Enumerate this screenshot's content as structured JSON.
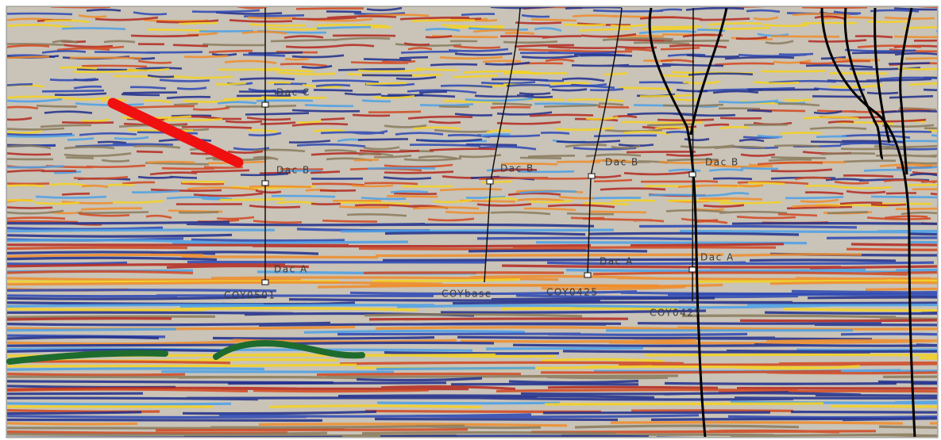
{
  "wells": [
    {
      "name": "COY0501",
      "markers": [
        "Dac C",
        "Dac B",
        "Dac A"
      ]
    },
    {
      "name": "COYbase",
      "markers": [
        "Dac B"
      ]
    },
    {
      "name": "COY0425",
      "markers": [
        "Dac B",
        "Dac A"
      ]
    },
    {
      "name": "COY0427",
      "markers": [
        "Dac B",
        "Dac A"
      ]
    }
  ]
}
